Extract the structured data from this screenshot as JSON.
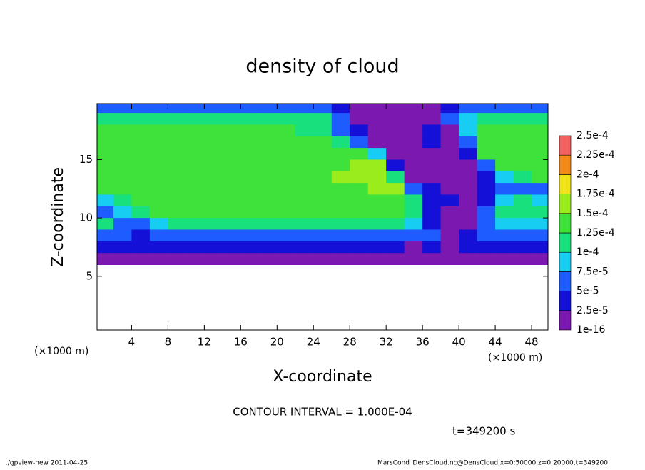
{
  "chart_data": {
    "type": "heatmap",
    "title": "density of cloud",
    "x_label": "X-coordinate",
    "y_label": "Z-coordinate",
    "x_unit_label": "(×1000 m)",
    "annotations": [
      "CONTOUR INTERVAL = 1.000E-04",
      "t=349200 s"
    ],
    "footer_left": "./gpview-new  2011-04-25",
    "footer_right": "MarsCond_DensCloud.nc@DensCloud,x=0:50000,z=0:20000,t=349200",
    "xlim": [
      0.2,
      49.8
    ],
    "ylim": [
      0.4,
      19.8
    ],
    "xticks": [
      4,
      8,
      12,
      16,
      20,
      24,
      28,
      32,
      36,
      40,
      44,
      48
    ],
    "yticks": [
      5,
      10,
      15
    ],
    "x": [
      1,
      3,
      5,
      7,
      9,
      11,
      13,
      15,
      17,
      19,
      21,
      23,
      25,
      27,
      29,
      31,
      33,
      35,
      37,
      39,
      41,
      43,
      45,
      47,
      49
    ],
    "y": [
      19.5,
      18.5,
      17.5,
      16.5,
      15.5,
      14.5,
      13.5,
      12.5,
      11.5,
      10.5,
      9.5,
      8.5,
      7.5,
      6.5
    ],
    "z": [
      [
        6e-05,
        6e-05,
        6e-05,
        6e-05,
        6e-05,
        6e-05,
        6e-05,
        6e-05,
        6e-05,
        6e-05,
        6e-05,
        6e-05,
        6e-05,
        4e-05,
        1e-05,
        1e-05,
        1e-05,
        1e-05,
        1e-05,
        3e-05,
        6e-05,
        6e-05,
        6e-05,
        6e-05,
        6e-05
      ],
      [
        0.00012,
        0.00012,
        0.00012,
        0.00012,
        0.00012,
        0.00012,
        0.00012,
        0.00012,
        0.00012,
        0.00012,
        0.00012,
        0.00012,
        0.0001,
        6e-05,
        1e-05,
        1e-05,
        1e-05,
        1e-05,
        1e-05,
        5e-05,
        9e-05,
        0.00012,
        0.00012,
        0.00012,
        0.00012
      ],
      [
        0.00013,
        0.00013,
        0.00013,
        0.00013,
        0.00013,
        0.00013,
        0.00013,
        0.00013,
        0.00013,
        0.00013,
        0.00013,
        0.00012,
        0.0001,
        7e-05,
        3e-05,
        1e-05,
        1e-05,
        1e-05,
        3e-05,
        1e-05,
        8e-05,
        0.00013,
        0.00013,
        0.00013,
        0.00013
      ],
      [
        0.000135,
        0.000135,
        0.000135,
        0.000135,
        0.000135,
        0.000135,
        0.000135,
        0.000135,
        0.000135,
        0.000135,
        0.000135,
        0.000135,
        0.000135,
        0.00011,
        7e-05,
        2e-05,
        1e-05,
        1e-05,
        4e-05,
        1.5e-05,
        6e-05,
        0.000135,
        0.000135,
        0.000135,
        0.000135
      ],
      [
        0.00014,
        0.00014,
        0.00014,
        0.00014,
        0.00014,
        0.00014,
        0.00014,
        0.00014,
        0.00014,
        0.00014,
        0.00014,
        0.00014,
        0.00014,
        0.00014,
        0.00014,
        8e-05,
        1e-05,
        1e-05,
        1.5e-05,
        1e-05,
        3e-05,
        0.00014,
        0.00014,
        0.00014,
        0.00014
      ],
      [
        0.000145,
        0.000145,
        0.000145,
        0.000145,
        0.000145,
        0.000145,
        0.000145,
        0.000145,
        0.000145,
        0.000145,
        0.000145,
        0.000145,
        0.000145,
        0.000145,
        0.00015,
        0.00016,
        4e-05,
        1e-05,
        1e-05,
        1e-05,
        1e-05,
        5e-05,
        0.00014,
        0.00014,
        0.00014
      ],
      [
        0.000145,
        0.000145,
        0.000145,
        0.000145,
        0.000145,
        0.000145,
        0.000145,
        0.000145,
        0.000145,
        0.000145,
        0.000145,
        0.000145,
        0.000145,
        0.000155,
        0.00016,
        0.00017,
        0.00012,
        2e-05,
        1e-05,
        1e-05,
        2e-05,
        4e-05,
        8e-05,
        0.00012,
        0.00013
      ],
      [
        0.00013,
        0.000145,
        0.000145,
        0.000145,
        0.000145,
        0.000145,
        0.000145,
        0.000145,
        0.000145,
        0.000145,
        0.000145,
        0.000145,
        0.000145,
        0.000145,
        0.000145,
        0.00016,
        0.00015,
        6e-05,
        3e-05,
        1e-05,
        2e-05,
        4e-05,
        5e-05,
        6e-05,
        7e-05
      ],
      [
        9e-05,
        0.00012,
        0.00014,
        0.00014,
        0.00014,
        0.00014,
        0.00014,
        0.00014,
        0.00014,
        0.00014,
        0.00014,
        0.00014,
        0.00014,
        0.00014,
        0.00014,
        0.00014,
        0.00014,
        0.00011,
        4e-05,
        3e-05,
        2e-05,
        4e-05,
        8e-05,
        0.00011,
        9e-05
      ],
      [
        7e-05,
        8e-05,
        0.00011,
        0.000135,
        0.000135,
        0.000135,
        0.000135,
        0.000135,
        0.000135,
        0.000135,
        0.000135,
        0.000135,
        0.000135,
        0.000135,
        0.000135,
        0.000135,
        0.000135,
        0.00012,
        4e-05,
        2e-05,
        1e-05,
        5e-05,
        0.00012,
        0.00012,
        0.00012
      ],
      [
        0.00011,
        6e-05,
        7e-05,
        8e-05,
        0.000105,
        0.000105,
        0.000105,
        0.000105,
        0.000105,
        0.000105,
        0.000105,
        0.000105,
        0.000105,
        0.000105,
        0.000105,
        0.000105,
        0.000105,
        9e-05,
        3e-05,
        2e-05,
        1e-05,
        5e-05,
        8e-05,
        8e-05,
        8e-05
      ],
      [
        7e-05,
        5e-05,
        4e-05,
        7e-05,
        7e-05,
        7e-05,
        7e-05,
        7e-05,
        7e-05,
        7e-05,
        7e-05,
        7e-05,
        7e-05,
        7e-05,
        7e-05,
        7e-05,
        7e-05,
        7e-05,
        5e-05,
        1.5e-05,
        3e-05,
        7e-05,
        7e-05,
        7e-05,
        7e-05
      ],
      [
        3e-05,
        3e-05,
        3e-05,
        3e-05,
        3e-05,
        3e-05,
        3e-05,
        3e-05,
        3e-05,
        3e-05,
        3e-05,
        3e-05,
        3e-05,
        3e-05,
        3e-05,
        3e-05,
        3e-05,
        1.5e-05,
        3e-05,
        1.5e-05,
        3e-05,
        3e-05,
        3e-05,
        3e-05,
        3e-05
      ],
      [
        1e-05,
        1e-05,
        1e-05,
        1e-05,
        1e-05,
        1e-05,
        1e-05,
        1e-05,
        1e-05,
        1e-05,
        1e-05,
        1e-05,
        1e-05,
        1e-05,
        1e-05,
        1e-05,
        1e-05,
        1e-05,
        1e-05,
        1e-05,
        1e-05,
        1e-05,
        1e-05,
        1e-05,
        1e-05
      ]
    ],
    "levels": [
      {
        "value": 1e-16,
        "label": "1e-16"
      },
      {
        "value": 2.5e-05,
        "label": "2.5e-5"
      },
      {
        "value": 5e-05,
        "label": "5e-5"
      },
      {
        "value": 7.5e-05,
        "label": "7.5e-5"
      },
      {
        "value": 0.0001,
        "label": "1e-4"
      },
      {
        "value": 0.000125,
        "label": "1.25e-4"
      },
      {
        "value": 0.00015,
        "label": "1.5e-4"
      },
      {
        "value": 0.000175,
        "label": "1.75e-4"
      },
      {
        "value": 0.0002,
        "label": "2e-4"
      },
      {
        "value": 0.000225,
        "label": "2.25e-4"
      },
      {
        "value": 0.00025,
        "label": "2.5e-4"
      }
    ],
    "colors": [
      "#7a18b0",
      "#1410d8",
      "#1e5cff",
      "#18cdf2",
      "#18e07c",
      "#3ee23a",
      "#9aec1c",
      "#f0e418",
      "#f28a1a",
      "#f26060"
    ]
  }
}
